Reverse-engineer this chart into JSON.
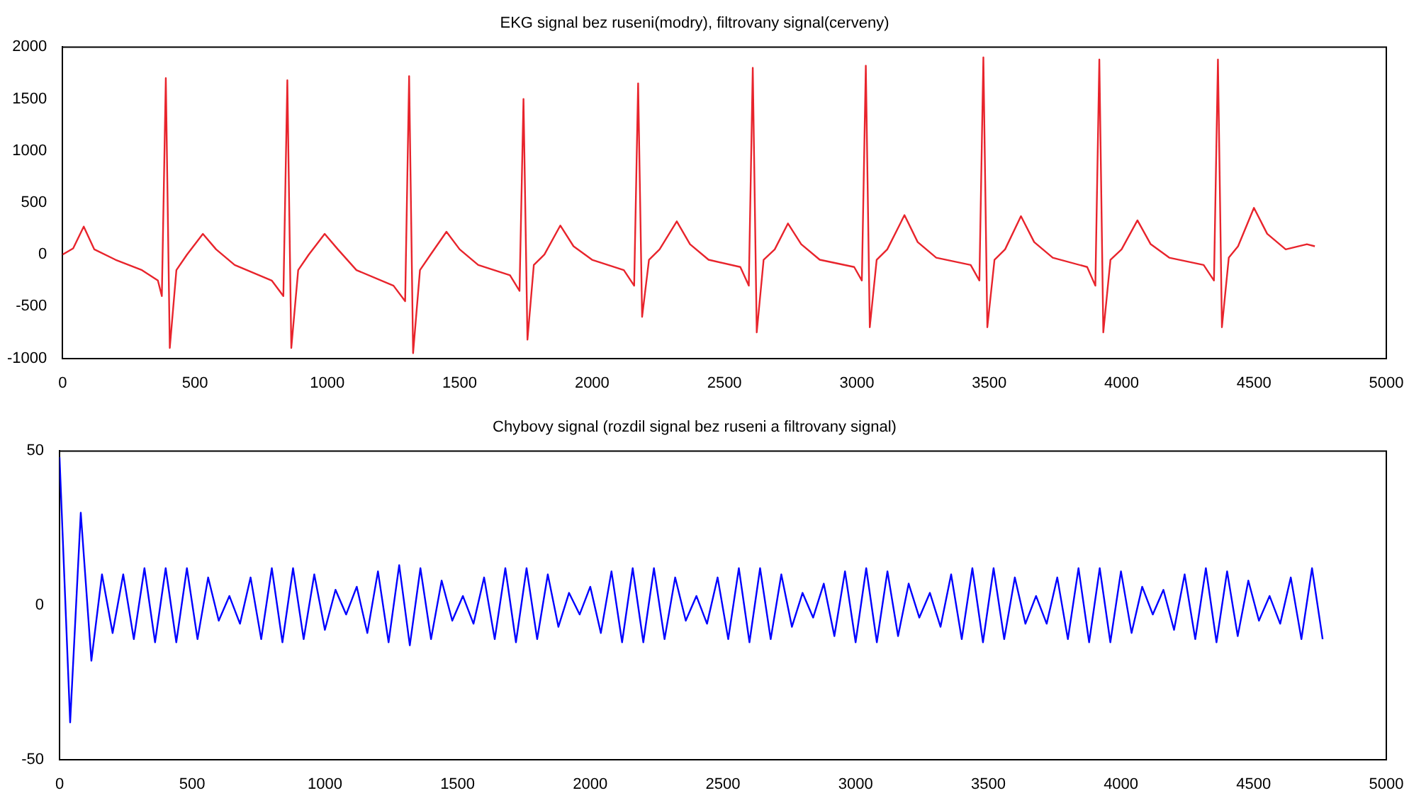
{
  "chart_data": [
    {
      "type": "line",
      "title": "EKG signal bez ruseni(modry), filtrovany signal(cerveny)",
      "xlim": [
        0,
        5000
      ],
      "xticks": [
        0,
        500,
        1000,
        1500,
        2000,
        2500,
        3000,
        3500,
        4000,
        4500,
        5000
      ],
      "ylim": [
        -1000,
        2000
      ],
      "yticks": [
        -1000,
        -500,
        0,
        500,
        1000,
        1500,
        2000
      ],
      "grid": false,
      "legend": false,
      "marker": "none",
      "line_style": "solid",
      "series": [
        {
          "color": "#e8242c",
          "x": [
            0,
            40,
            80,
            120,
            200,
            300,
            360,
            375,
            390,
            405,
            430,
            470,
            530,
            580,
            650,
            790,
            834,
            849,
            864,
            890,
            930,
            990,
            1040,
            1110,
            1250,
            1294,
            1309,
            1324,
            1350,
            1390,
            1450,
            1500,
            1570,
            1690,
            1726,
            1741,
            1756,
            1780,
            1820,
            1880,
            1930,
            2000,
            2120,
            2159,
            2174,
            2189,
            2215,
            2255,
            2320,
            2370,
            2440,
            2560,
            2592,
            2607,
            2622,
            2648,
            2690,
            2740,
            2790,
            2860,
            2990,
            3019,
            3034,
            3049,
            3075,
            3115,
            3180,
            3230,
            3300,
            3430,
            3463,
            3478,
            3493,
            3520,
            3560,
            3620,
            3670,
            3740,
            3870,
            3901,
            3916,
            3931,
            3958,
            4000,
            4060,
            4110,
            4180,
            4310,
            4349,
            4364,
            4379,
            4405,
            4440,
            4500,
            4550,
            4620,
            4700,
            4730
          ],
          "values": [
            0,
            60,
            270,
            50,
            -50,
            -150,
            -250,
            -400,
            1700,
            -900,
            -150,
            0,
            200,
            50,
            -100,
            -250,
            -400,
            1680,
            -900,
            -150,
            0,
            200,
            50,
            -150,
            -300,
            -450,
            1720,
            -950,
            -150,
            0,
            220,
            50,
            -100,
            -200,
            -350,
            1500,
            -820,
            -100,
            0,
            280,
            80,
            -50,
            -150,
            -300,
            1650,
            -600,
            -50,
            50,
            320,
            100,
            -50,
            -120,
            -300,
            1800,
            -750,
            -50,
            50,
            300,
            100,
            -50,
            -120,
            -250,
            1820,
            -700,
            -50,
            50,
            380,
            120,
            -30,
            -100,
            -250,
            1900,
            -700,
            -50,
            50,
            370,
            120,
            -30,
            -120,
            -300,
            1880,
            -750,
            -50,
            50,
            330,
            100,
            -30,
            -100,
            -250,
            1880,
            -700,
            -30,
            80,
            450,
            200,
            50,
            100,
            80
          ]
        }
      ]
    },
    {
      "type": "line",
      "title": "Chybovy signal (rozdil signal bez ruseni a filtrovany signal)",
      "xlim": [
        0,
        5000
      ],
      "xticks": [
        0,
        500,
        1000,
        1500,
        2000,
        2500,
        3000,
        3500,
        4000,
        4500,
        5000
      ],
      "ylim": [
        -50,
        50
      ],
      "yticks": [
        -50,
        0,
        50
      ],
      "grid": false,
      "legend": false,
      "marker": "none",
      "line_style": "solid",
      "series": [
        {
          "color": "#0000ff",
          "x": [
            0,
            40,
            80,
            120,
            160,
            200,
            240,
            280,
            320,
            360,
            400,
            440,
            480,
            520,
            560,
            600,
            640,
            680,
            720,
            760,
            800,
            840,
            880,
            920,
            960,
            1000,
            1040,
            1080,
            1120,
            1160,
            1200,
            1240,
            1280,
            1320,
            1360,
            1400,
            1440,
            1480,
            1520,
            1560,
            1600,
            1640,
            1680,
            1720,
            1760,
            1800,
            1840,
            1880,
            1920,
            1960,
            2000,
            2040,
            2080,
            2120,
            2160,
            2200,
            2240,
            2280,
            2320,
            2360,
            2400,
            2440,
            2480,
            2520,
            2560,
            2600,
            2640,
            2680,
            2720,
            2760,
            2800,
            2840,
            2880,
            2920,
            2960,
            3000,
            3040,
            3080,
            3120,
            3160,
            3200,
            3240,
            3280,
            3320,
            3360,
            3400,
            3440,
            3480,
            3520,
            3560,
            3600,
            3640,
            3680,
            3720,
            3760,
            3800,
            3840,
            3880,
            3920,
            3960,
            4000,
            4040,
            4080,
            4120,
            4160,
            4200,
            4240,
            4280,
            4320,
            4360,
            4400,
            4440,
            4480,
            4520,
            4560,
            4600,
            4640,
            4680,
            4720,
            4760
          ],
          "values": [
            48,
            -38,
            30,
            -18,
            10,
            -9,
            10,
            -11,
            12,
            -12,
            12,
            -12,
            12,
            -11,
            9,
            -5,
            3,
            -6,
            9,
            -11,
            12,
            -12,
            12,
            -11,
            10,
            -8,
            5,
            -3,
            6,
            -9,
            11,
            -12,
            13,
            -13,
            12,
            -11,
            8,
            -5,
            3,
            -6,
            9,
            -11,
            12,
            -12,
            12,
            -11,
            10,
            -7,
            4,
            -3,
            6,
            -9,
            11,
            -12,
            12,
            -12,
            12,
            -11,
            9,
            -5,
            3,
            -6,
            9,
            -11,
            12,
            -12,
            12,
            -11,
            10,
            -7,
            4,
            -4,
            7,
            -10,
            11,
            -12,
            12,
            -12,
            11,
            -10,
            7,
            -4,
            4,
            -7,
            10,
            -11,
            12,
            -12,
            12,
            -11,
            9,
            -6,
            3,
            -6,
            9,
            -11,
            12,
            -12,
            12,
            -12,
            11,
            -9,
            6,
            -3,
            5,
            -8,
            10,
            -11,
            12,
            -12,
            11,
            -10,
            8,
            -5,
            3,
            -6,
            9,
            -11,
            12,
            -11
          ]
        }
      ]
    }
  ]
}
